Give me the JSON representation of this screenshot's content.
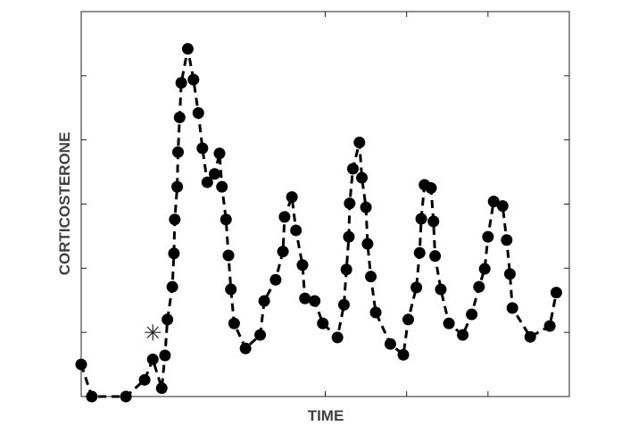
{
  "chart_data": {
    "type": "line",
    "x_label": "TIME",
    "y_label": "CORTICOSTERONE",
    "xlim": [
      0,
      6
    ],
    "ylim": [
      0,
      6
    ],
    "xticks": [
      3,
      4,
      5
    ],
    "yticks": [
      1,
      2,
      3,
      4,
      5
    ],
    "color": "#000000",
    "dashed": true,
    "x": [
      0,
      0.13,
      0.55,
      0.78,
      0.88,
      0.99,
      1.03,
      1.06,
      1.12,
      1.14,
      1.15,
      1.18,
      1.19,
      1.21,
      1.23,
      1.31,
      1.38,
      1.44,
      1.49,
      1.55,
      1.64,
      1.7,
      1.73,
      1.78,
      1.81,
      1.84,
      1.88,
      2.02,
      2.2,
      2.25,
      2.39,
      2.48,
      2.5,
      2.59,
      2.64,
      2.72,
      2.75,
      2.87,
      2.97,
      3.15,
      3.23,
      3.26,
      3.29,
      3.3,
      3.34,
      3.42,
      3.45,
      3.5,
      3.52,
      3.56,
      3.62,
      3.8,
      3.96,
      4.02,
      4.12,
      4.16,
      4.18,
      4.22,
      4.3,
      4.33,
      4.35,
      4.42,
      4.52,
      4.69,
      4.8,
      4.89,
      4.96,
      5.0,
      5.07,
      5.18,
      5.23,
      5.27,
      5.3,
      5.52,
      5.76,
      5.84
    ],
    "values": [
      0.5,
      0,
      0,
      0.26,
      0.58,
      0.13,
      0.64,
      1.2,
      1.71,
      2.23,
      2.76,
      3.27,
      3.81,
      4.35,
      4.89,
      5.42,
      4.94,
      4.42,
      3.87,
      3.34,
      3.47,
      3.79,
      3.27,
      2.76,
      2.2,
      1.67,
      1.14,
      0.75,
      0.96,
      1.49,
      1.82,
      2.26,
      2.8,
      3.11,
      2.59,
      2.05,
      1.53,
      1.49,
      1.14,
      0.92,
      1.43,
      1.98,
      2.49,
      3.01,
      3.55,
      3.96,
      3.41,
      2.95,
      2.38,
      1.87,
      1.31,
      0.82,
      0.65,
      1.2,
      1.7,
      2.24,
      2.77,
      3.3,
      3.25,
      2.73,
      2.19,
      1.67,
      1.14,
      0.96,
      1.28,
      1.71,
      1.99,
      2.49,
      3.04,
      2.97,
      2.44,
      1.91,
      1.38,
      0.93,
      1.1,
      1.62
    ],
    "event_marker": {
      "x": 0.88,
      "y": 1
    }
  }
}
